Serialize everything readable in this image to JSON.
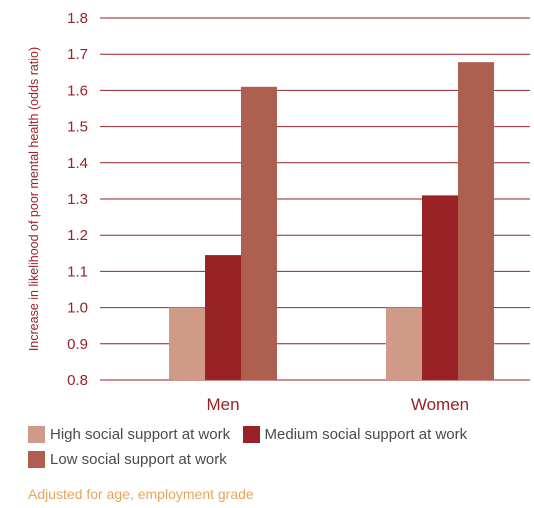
{
  "chart_data": {
    "type": "bar",
    "categories": [
      "Men",
      "Women"
    ],
    "series": [
      {
        "name": "High social support at work",
        "values": [
          1.0,
          1.0
        ],
        "color": "#d09a88"
      },
      {
        "name": "Medium social support at work",
        "values": [
          1.145,
          1.31
        ],
        "color": "#982226"
      },
      {
        "name": "Low social support at work",
        "values": [
          1.61,
          1.678
        ],
        "color": "#ad5f50"
      }
    ],
    "ylabel": "Increase in likelihood of poor mental health (odds ratio)",
    "ylim": [
      0.8,
      1.8
    ],
    "yticks": [
      "0.8",
      "0.9",
      "1.0",
      "1.1",
      "1.2",
      "1.3",
      "1.4",
      "1.5",
      "1.6",
      "1.7",
      "1.8"
    ],
    "grid": true,
    "legend_position": "bottom"
  },
  "note": "Adjusted for age, employment grade"
}
